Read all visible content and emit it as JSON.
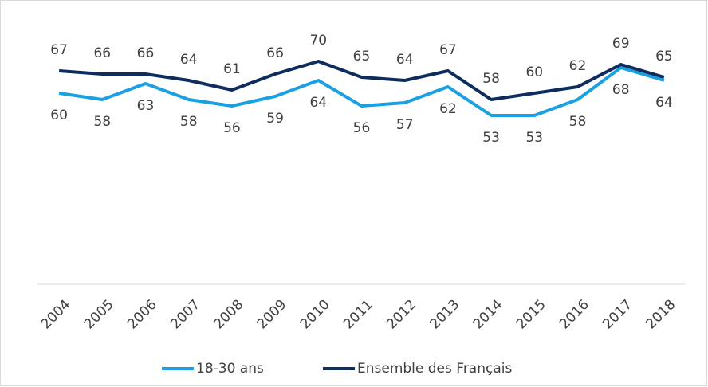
{
  "chart_data": {
    "type": "line",
    "categories": [
      "2004",
      "2005",
      "2006",
      "2007",
      "2008",
      "2009",
      "2010",
      "2011",
      "2012",
      "2013",
      "2014",
      "2015",
      "2016",
      "2017",
      "2018"
    ],
    "series": [
      {
        "name": "18-30 ans",
        "color": "#1ba1e2",
        "values": [
          60,
          58,
          63,
          58,
          56,
          59,
          64,
          56,
          57,
          62,
          53,
          53,
          58,
          68,
          64
        ],
        "label_position": "below"
      },
      {
        "name": "Ensemble des Français",
        "color": "#0e2d5e",
        "values": [
          67,
          66,
          66,
          64,
          61,
          66,
          70,
          65,
          64,
          67,
          58,
          60,
          62,
          69,
          65
        ],
        "label_position": "above"
      }
    ],
    "ylim": [
      0,
      80
    ],
    "legend": "bottom"
  }
}
